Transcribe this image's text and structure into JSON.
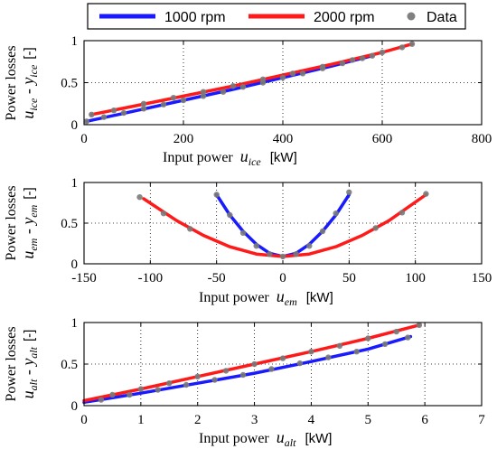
{
  "legend": {
    "placement": "top-center",
    "entries": [
      {
        "label": "1000 rpm",
        "color": "#1a1aff",
        "kind": "line"
      },
      {
        "label": "2000 rpm",
        "color": "#ff1a1a",
        "kind": "line"
      },
      {
        "label": "Data",
        "color": "#808080",
        "kind": "dot"
      }
    ]
  },
  "chart_data": [
    {
      "type": "line",
      "ylabel_top": "Power losses",
      "ylabel_main": "u",
      "ylabel_main_sub": "ice",
      "ylabel_op": " - y",
      "ylabel_op_sub": "ice",
      "ylabel_unit": "[-]",
      "xlabel_prefix": "Input power",
      "xlabel_var": "u",
      "xlabel_sub": "ice",
      "xlabel_unit": "[kW]",
      "xlim": [
        0,
        800
      ],
      "ylim": [
        0,
        1
      ],
      "xticks": [
        0,
        200,
        400,
        600,
        800
      ],
      "yticks": [
        0,
        0.5,
        1
      ],
      "grid": true,
      "series": [
        {
          "name": "1000 rpm",
          "color": "#1a1aff",
          "x": [
            5,
            100,
            200,
            300,
            400,
            500,
            580
          ],
          "y": [
            0.04,
            0.16,
            0.29,
            0.42,
            0.56,
            0.7,
            0.82
          ]
        },
        {
          "name": "2000 rpm",
          "color": "#ff1a1a",
          "x": [
            15,
            100,
            200,
            300,
            400,
            500,
            600,
            660
          ],
          "y": [
            0.12,
            0.22,
            0.34,
            0.46,
            0.59,
            0.72,
            0.86,
            0.96
          ]
        }
      ],
      "data_points": {
        "x": [
          5,
          40,
          80,
          120,
          160,
          200,
          240,
          280,
          320,
          360,
          400,
          440,
          480,
          520,
          560,
          580,
          15,
          60,
          120,
          180,
          240,
          300,
          360,
          420,
          480,
          540,
          600,
          640,
          660
        ],
        "y": [
          0.04,
          0.09,
          0.14,
          0.19,
          0.24,
          0.29,
          0.34,
          0.39,
          0.45,
          0.5,
          0.56,
          0.61,
          0.67,
          0.73,
          0.79,
          0.82,
          0.12,
          0.17,
          0.25,
          0.32,
          0.39,
          0.46,
          0.54,
          0.61,
          0.69,
          0.77,
          0.86,
          0.92,
          0.96
        ]
      }
    },
    {
      "type": "line",
      "ylabel_top": "Power losses",
      "ylabel_main": "u",
      "ylabel_main_sub": "em",
      "ylabel_op": " - y",
      "ylabel_op_sub": "em",
      "ylabel_unit": "[-]",
      "xlabel_prefix": "Input power",
      "xlabel_var": "u",
      "xlabel_sub": "em",
      "xlabel_unit": "[kW]",
      "xlim": [
        -150,
        150
      ],
      "ylim": [
        0,
        1
      ],
      "xticks": [
        -150,
        -100,
        -50,
        0,
        50,
        100,
        150
      ],
      "yticks": [
        0,
        0.5,
        1
      ],
      "grid": true,
      "series": [
        {
          "name": "1000 rpm",
          "color": "#1a1aff",
          "x": [
            -50,
            -40,
            -30,
            -20,
            -10,
            0,
            10,
            20,
            30,
            40,
            50
          ],
          "y": [
            0.85,
            0.6,
            0.4,
            0.24,
            0.13,
            0.09,
            0.13,
            0.24,
            0.4,
            0.6,
            0.85
          ]
        },
        {
          "name": "2000 rpm",
          "color": "#ff1a1a",
          "x": [
            -105,
            -80,
            -60,
            -40,
            -20,
            0,
            20,
            40,
            60,
            80,
            108
          ],
          "y": [
            0.8,
            0.53,
            0.35,
            0.21,
            0.12,
            0.09,
            0.12,
            0.21,
            0.35,
            0.53,
            0.85
          ]
        }
      ],
      "data_points": {
        "x": [
          -108,
          -90,
          -70,
          -50,
          -40,
          -30,
          -20,
          -10,
          0,
          10,
          20,
          30,
          40,
          50,
          70,
          90,
          108
        ],
        "y": [
          0.82,
          0.62,
          0.43,
          0.85,
          0.6,
          0.38,
          0.22,
          0.12,
          0.09,
          0.12,
          0.22,
          0.4,
          0.62,
          0.88,
          0.44,
          0.63,
          0.86
        ]
      }
    },
    {
      "type": "line",
      "ylabel_top": "Power losses",
      "ylabel_main": "u",
      "ylabel_main_sub": "alt",
      "ylabel_op": " - y",
      "ylabel_op_sub": "alt",
      "ylabel_unit": "[-]",
      "xlabel_prefix": "Input power",
      "xlabel_var": "u",
      "xlabel_sub": "alt",
      "xlabel_unit": "[kW]",
      "xlim": [
        0,
        7
      ],
      "ylim": [
        0,
        1
      ],
      "xticks": [
        0,
        1,
        2,
        3,
        4,
        5,
        6,
        7
      ],
      "yticks": [
        0,
        0.5,
        1
      ],
      "grid": true,
      "series": [
        {
          "name": "1000 rpm",
          "color": "#1a1aff",
          "x": [
            0,
            1,
            2,
            3,
            4,
            5,
            5.75
          ],
          "y": [
            0.04,
            0.15,
            0.27,
            0.39,
            0.53,
            0.68,
            0.83
          ]
        },
        {
          "name": "2000 rpm",
          "color": "#ff1a1a",
          "x": [
            0,
            1,
            2,
            3,
            4,
            5,
            5.9
          ],
          "y": [
            0.06,
            0.2,
            0.35,
            0.5,
            0.65,
            0.81,
            0.97
          ]
        }
      ],
      "data_points": {
        "x": [
          0.3,
          0.8,
          1.3,
          1.8,
          2.3,
          2.8,
          3.3,
          3.8,
          4.3,
          4.8,
          5.3,
          5.7,
          0.5,
          1.0,
          1.5,
          2.0,
          2.5,
          3.0,
          3.5,
          4.0,
          4.5,
          5.0,
          5.5,
          5.9
        ],
        "y": [
          0.07,
          0.13,
          0.19,
          0.25,
          0.31,
          0.37,
          0.44,
          0.51,
          0.58,
          0.65,
          0.74,
          0.82,
          0.13,
          0.2,
          0.27,
          0.35,
          0.42,
          0.5,
          0.57,
          0.65,
          0.72,
          0.81,
          0.89,
          0.97
        ]
      }
    }
  ]
}
